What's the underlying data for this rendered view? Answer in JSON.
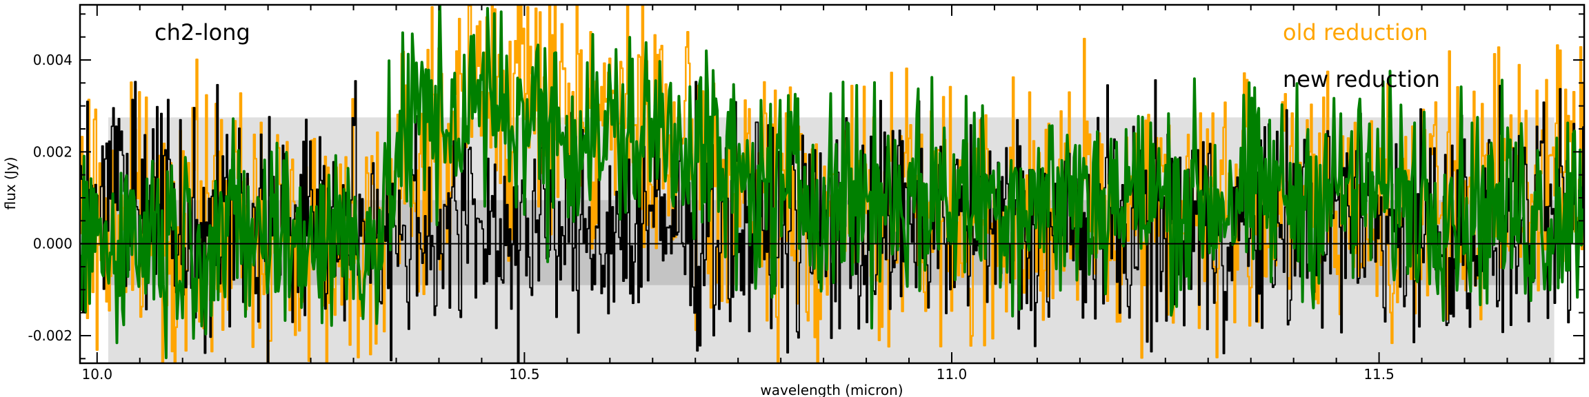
{
  "chart_data": {
    "type": "line",
    "xlabel": "wavelength (micron)",
    "ylabel": "flux (Jy)",
    "xlim": [
      9.98,
      11.74
    ],
    "ylim": [
      -0.0026,
      0.0052
    ],
    "xticks": [
      10.0,
      10.5,
      11.0,
      11.5
    ],
    "xtick_labels": [
      "10.0",
      "10.5",
      "11.0",
      "11.5"
    ],
    "yticks": [
      -0.002,
      0.0,
      0.002,
      0.004
    ],
    "ytick_labels": [
      "-0.002",
      "0.000",
      "0.002",
      "0.004"
    ],
    "grid": false,
    "annotations": [
      {
        "text": "ch2-long",
        "color": "#000000"
      },
      {
        "text": "old reduction",
        "color": "#FFA500"
      },
      {
        "text": "new reduction",
        "color": "#000000"
      }
    ],
    "bands": [
      {
        "x": [
          10.013,
          11.705
        ],
        "y": [
          -0.0026,
          0.00275
        ],
        "color": "#E0E0E0"
      },
      {
        "x": [
          10.013,
          11.705
        ],
        "y": [
          -0.0009,
          0.00095
        ],
        "color": "#C4C4C4"
      }
    ],
    "series": [
      {
        "color": "#FFA500",
        "style": "steps",
        "envelope": {
          "x": [
            9.98,
            10.1,
            10.3,
            10.32,
            10.4,
            10.45,
            10.5,
            10.55,
            10.6,
            10.7,
            10.8,
            11.0,
            11.2,
            11.4,
            11.6,
            11.74
          ],
          "y": [
            0.0004,
            0.0005,
            0.0003,
            0.0008,
            0.0022,
            0.0035,
            0.003,
            0.0033,
            0.0028,
            0.0015,
            0.0007,
            0.0007,
            0.0007,
            0.0008,
            0.0007,
            0.0025
          ]
        },
        "scatter": 0.0014
      },
      {
        "color": "#000000",
        "style": "steps",
        "envelope": {
          "x": [
            9.98,
            10.02,
            10.1,
            10.3,
            10.5,
            10.7,
            10.9,
            11.1,
            11.3,
            11.5,
            11.74
          ],
          "y": [
            0.0,
            0.0018,
            0.0006,
            0.0004,
            0.0003,
            0.0004,
            0.0004,
            0.0004,
            0.0004,
            0.0004,
            0.0005
          ]
        },
        "scatter": 0.0012
      },
      {
        "color": "#008000",
        "style": "line",
        "envelope": {
          "x": [
            9.98,
            10.2,
            10.33,
            10.36,
            10.45,
            10.5,
            10.55,
            10.7,
            10.75,
            10.9,
            11.1,
            11.3,
            11.5,
            11.7,
            11.74
          ],
          "y": [
            0.0002,
            0.0002,
            0.0001,
            0.0026,
            0.003,
            0.0028,
            0.0024,
            0.0024,
            0.0012,
            0.0011,
            0.001,
            0.001,
            0.0012,
            0.0006,
            0.0012
          ]
        },
        "scatter": 0.0011
      }
    ]
  }
}
